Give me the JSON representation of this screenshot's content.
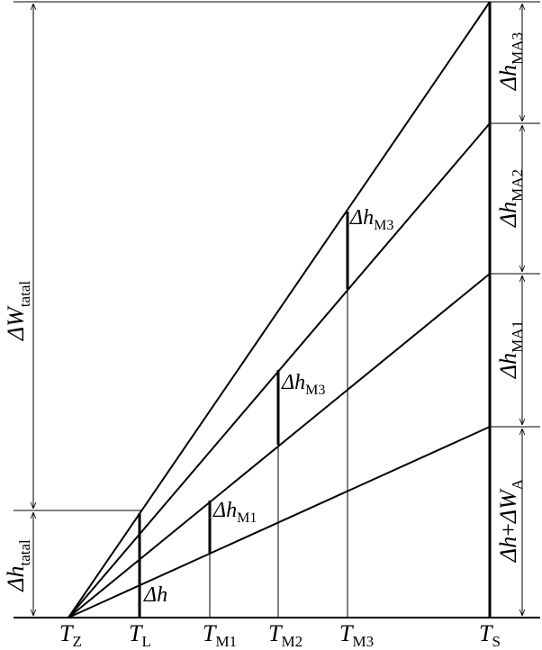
{
  "diagram": {
    "labels": {
      "delta_w_total": {
        "symbol": "ΔW",
        "sub": "tatal"
      },
      "delta_h_total": {
        "symbol": "Δh",
        "sub": "tatal"
      },
      "dh_ma3": {
        "symbol": "Δh",
        "sub": "MA3"
      },
      "dh_ma2": {
        "symbol": "Δh",
        "sub": "MA2"
      },
      "dh_ma1": {
        "symbol": "Δh",
        "sub": "MA1"
      },
      "dh_plus_dwa": {
        "a": "Δh",
        "plus": "+",
        "b": "ΔW",
        "sub": "A"
      },
      "dh_m3_upper": {
        "symbol": "Δh",
        "sub": "M3"
      },
      "dh_m3_lower": {
        "symbol": "Δh",
        "sub": "M3"
      },
      "dh_m1": {
        "symbol": "Δh",
        "sub": "M1"
      },
      "dh": {
        "symbol": "Δh"
      }
    },
    "axis_ticks": [
      {
        "letter": "T",
        "sub": "Z"
      },
      {
        "letter": "T",
        "sub": "L"
      },
      {
        "letter": "T",
        "sub": "M1"
      },
      {
        "letter": "T",
        "sub": "M2"
      },
      {
        "letter": "T",
        "sub": "M3"
      },
      {
        "letter": "T",
        "sub": "S"
      }
    ]
  }
}
